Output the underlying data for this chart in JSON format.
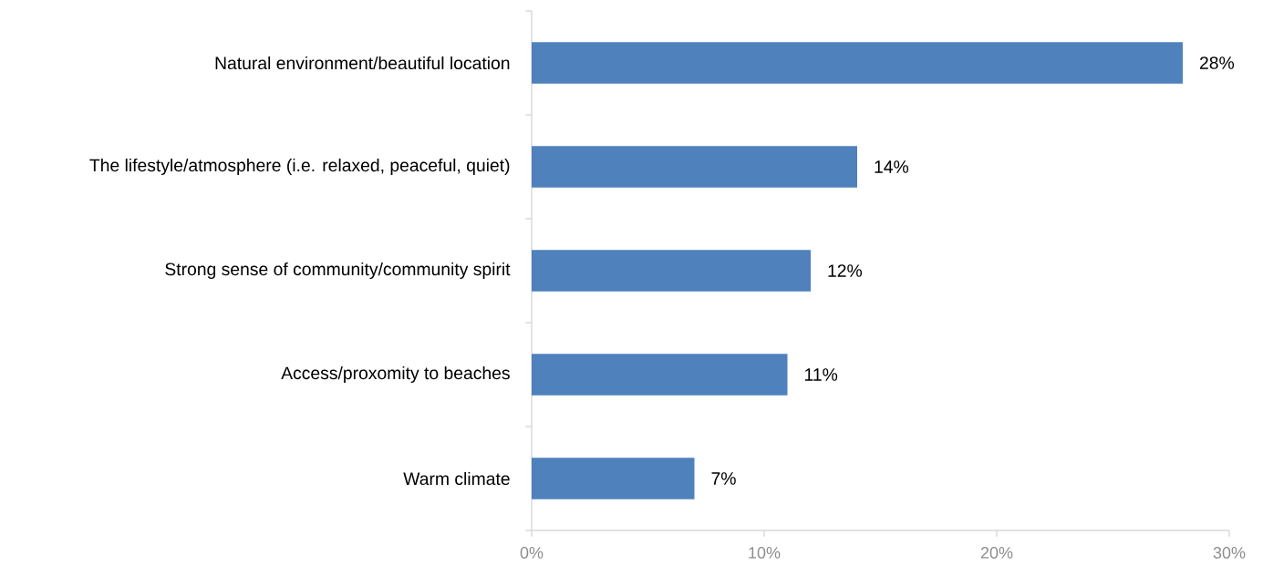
{
  "chart_data": {
    "type": "bar",
    "orientation": "horizontal",
    "categories": [
      "Natural environment/beautiful location",
      "The lifestyle/atmosphere (i.e. relaxed, peaceful, quiet)",
      "Strong sense of community/community spirit",
      "Access/proxomity to beaches",
      "Warm climate"
    ],
    "values": [
      28,
      14,
      12,
      11,
      7
    ],
    "value_labels": [
      "28%",
      "14%",
      "12%",
      "11%",
      "7%"
    ],
    "color": "#4f81bd",
    "xlim": [
      0,
      30
    ],
    "xticks": [
      {
        "value": 0,
        "label": "0%"
      },
      {
        "value": 10,
        "label": "10%"
      },
      {
        "value": 20,
        "label": "20%"
      },
      {
        "value": 30,
        "label": "30%"
      }
    ]
  }
}
